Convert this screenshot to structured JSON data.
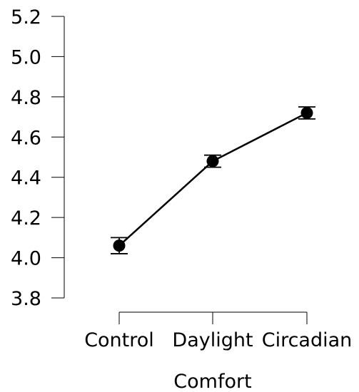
{
  "chart_data": {
    "type": "line",
    "title": "",
    "xlabel": "Comfort",
    "ylabel": "",
    "categories": [
      "Control",
      "Daylight",
      "Circadian"
    ],
    "series": [
      {
        "values": [
          4.06,
          4.48,
          4.72
        ],
        "error_low": [
          4.02,
          4.45,
          4.69
        ],
        "error_high": [
          4.1,
          4.51,
          4.75
        ]
      }
    ],
    "ylim": [
      3.8,
      5.2
    ],
    "yticks": [
      "3.8",
      "4.0",
      "4.2",
      "4.4",
      "4.6",
      "4.8",
      "5.0",
      "5.2"
    ],
    "grid": false,
    "legend": "none"
  }
}
